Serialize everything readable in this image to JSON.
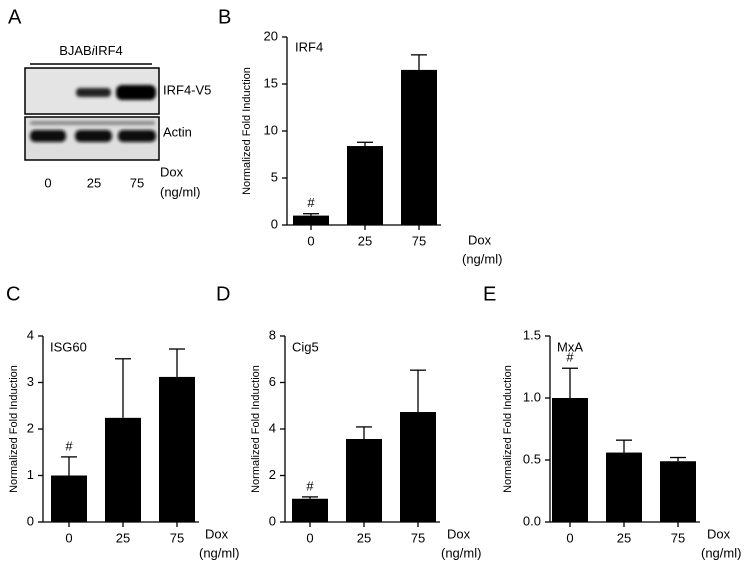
{
  "blot": {
    "panel": "A",
    "cell_line": [
      "BJAB",
      "i",
      "IRF4"
    ],
    "bands": [
      "IRF4-V5",
      "Actin"
    ],
    "lanes": [
      "0",
      "25",
      "75"
    ],
    "x_label": [
      "Dox",
      "(ng/ml)"
    ]
  },
  "chart_data": [
    {
      "type": "bar",
      "panel": "B",
      "title": "IRF4",
      "y_label": "Normalized Fold Induction",
      "x_label": [
        "Dox",
        "(ng/ml)"
      ],
      "categories": [
        "0",
        "25",
        "75"
      ],
      "values": [
        1.0,
        8.4,
        16.5
      ],
      "errors": [
        0.2,
        0.4,
        1.6
      ],
      "color": "#000000",
      "annotation": "#",
      "ylim": [
        0,
        20
      ],
      "yticks": [
        0,
        5,
        10,
        15,
        20
      ]
    },
    {
      "type": "bar",
      "panel": "C",
      "title": "ISG60",
      "y_label": "Normalized Fold Induction",
      "x_label": [
        "Dox",
        "(ng/ml)"
      ],
      "categories": [
        "0",
        "25",
        "75"
      ],
      "values": [
        1.0,
        2.24,
        3.12
      ],
      "errors": [
        0.4,
        1.27,
        0.6
      ],
      "color": "#000000",
      "annotation": "#",
      "ylim": [
        0,
        4
      ],
      "yticks": [
        0,
        1,
        2,
        3,
        4
      ]
    },
    {
      "type": "bar",
      "panel": "D",
      "title": "Cig5",
      "y_label": "Normalized Fold Induction",
      "x_label": [
        "Dox",
        "(ng/ml)"
      ],
      "categories": [
        "0",
        "25",
        "75"
      ],
      "values": [
        1.0,
        3.57,
        4.73
      ],
      "errors": [
        0.08,
        0.52,
        1.8
      ],
      "color": "#000000",
      "annotation": "#",
      "ylim": [
        0,
        8
      ],
      "yticks": [
        0,
        2,
        4,
        6,
        8
      ]
    },
    {
      "type": "bar",
      "panel": "E",
      "title": "MxA",
      "y_label": "Normalized Fold Induction",
      "x_label": [
        "Dox",
        "(ng/ml)"
      ],
      "categories": [
        "0",
        "25",
        "75"
      ],
      "values": [
        1.0,
        0.56,
        0.49
      ],
      "errors": [
        0.24,
        0.1,
        0.03
      ],
      "color": "#000000",
      "annotation": "#",
      "ylim": [
        0,
        1.5
      ],
      "yticks": [
        {
          "value": 0,
          "label": "0.0"
        },
        0.5,
        {
          "value": 1,
          "label": "1.0"
        },
        1.5
      ]
    }
  ]
}
